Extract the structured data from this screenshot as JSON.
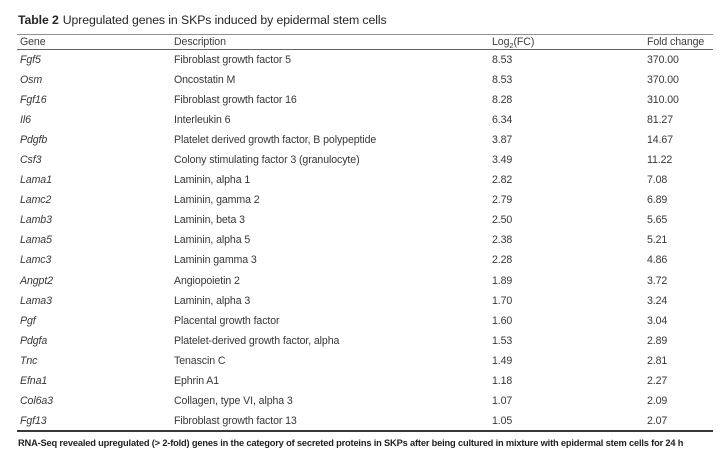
{
  "table": {
    "title_label": "Table 2",
    "title_text": "Upregulated genes in SKPs induced by epidermal stem cells",
    "header": {
      "gene": "Gene",
      "description": "Description",
      "log2fc_pre": "Log",
      "log2fc_sub": "2",
      "log2fc_post": "(FC)",
      "fold_change": "Fold change"
    },
    "rows": [
      {
        "gene": "Fgf5",
        "description": "Fibroblast growth factor 5",
        "log2fc": "8.53",
        "fold": "370.00"
      },
      {
        "gene": "Osm",
        "description": "Oncostatin M",
        "log2fc": "8.53",
        "fold": "370.00"
      },
      {
        "gene": "Fgf16",
        "description": "Fibroblast growth factor 16",
        "log2fc": "8.28",
        "fold": "310.00"
      },
      {
        "gene": "Il6",
        "description": "Interleukin 6",
        "log2fc": "6.34",
        "fold": "81.27"
      },
      {
        "gene": "Pdgfb",
        "description": "Platelet derived growth factor, B polypeptide",
        "log2fc": "3.87",
        "fold": "14.67"
      },
      {
        "gene": "Csf3",
        "description": "Colony stimulating factor 3 (granulocyte)",
        "log2fc": "3.49",
        "fold": "11.22"
      },
      {
        "gene": "Lama1",
        "description": "Laminin, alpha 1",
        "log2fc": "2.82",
        "fold": "7.08"
      },
      {
        "gene": "Lamc2",
        "description": "Laminin, gamma 2",
        "log2fc": "2.79",
        "fold": "6.89"
      },
      {
        "gene": "Lamb3",
        "description": "Laminin, beta 3",
        "log2fc": "2.50",
        "fold": "5.65"
      },
      {
        "gene": "Lama5",
        "description": "Laminin, alpha 5",
        "log2fc": "2.38",
        "fold": "5.21"
      },
      {
        "gene": "Lamc3",
        "description": "Laminin gamma 3",
        "log2fc": "2.28",
        "fold": "4.86"
      },
      {
        "gene": "Angpt2",
        "description": "Angiopoietin 2",
        "log2fc": "1.89",
        "fold": "3.72"
      },
      {
        "gene": "Lama3",
        "description": "Laminin, alpha 3",
        "log2fc": "1.70",
        "fold": "3.24"
      },
      {
        "gene": "Pgf",
        "description": "Placental growth factor",
        "log2fc": "1.60",
        "fold": "3.04"
      },
      {
        "gene": "Pdgfa",
        "description": "Platelet-derived growth factor, alpha",
        "log2fc": "1.53",
        "fold": "2.89"
      },
      {
        "gene": "Tnc",
        "description": "Tenascin C",
        "log2fc": "1.49",
        "fold": "2.81"
      },
      {
        "gene": "Efna1",
        "description": "Ephrin A1",
        "log2fc": "1.18",
        "fold": "2.27"
      },
      {
        "gene": "Col6a3",
        "description": "Collagen, type VI, alpha 3",
        "log2fc": "1.07",
        "fold": "2.09"
      },
      {
        "gene": "Fgf13",
        "description": "Fibroblast growth factor 13",
        "log2fc": "1.05",
        "fold": "2.07"
      }
    ],
    "footnote": "RNA-Seq revealed upregulated (> 2-fold) genes in the category of secreted proteins in SKPs after being cultured in mixture with epidermal stem cells for 24 h",
    "colors": {
      "text": "#373737",
      "rule_light": "#8f8f8f",
      "rule_mid": "#636363",
      "rule_dark": "#383838"
    }
  }
}
